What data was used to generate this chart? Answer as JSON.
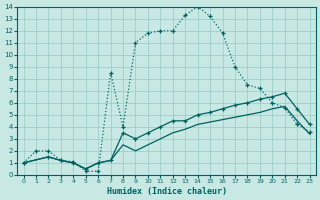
{
  "xlabel": "Humidex (Indice chaleur)",
  "bg_color": "#c8e8e4",
  "grid_color": "#98c8c4",
  "line_color": "#006060",
  "xlim": [
    -0.5,
    23.5
  ],
  "ylim": [
    0,
    14
  ],
  "xticks": [
    0,
    1,
    2,
    3,
    4,
    5,
    6,
    7,
    8,
    9,
    10,
    11,
    12,
    13,
    14,
    15,
    16,
    17,
    18,
    19,
    20,
    21,
    22,
    23
  ],
  "yticks": [
    0,
    1,
    2,
    3,
    4,
    5,
    6,
    7,
    8,
    9,
    10,
    11,
    12,
    13,
    14
  ],
  "line_dotted_x": [
    0,
    1,
    2,
    3,
    4,
    5,
    6,
    7,
    8,
    9,
    10,
    11,
    12,
    13,
    14,
    15,
    16,
    17,
    18,
    19,
    20,
    21,
    22,
    23
  ],
  "line_dotted_y": [
    1,
    2,
    2,
    1.2,
    1.1,
    0.3,
    0.3,
    8.5,
    4,
    11,
    11.8,
    12,
    12,
    13.3,
    14,
    13.2,
    11.8,
    9,
    7.5,
    7.2,
    6.0,
    5.6,
    4.2,
    3.6
  ],
  "line_top_x": [
    0,
    2,
    3,
    4,
    5,
    6,
    7,
    8,
    9,
    10,
    11,
    12,
    13,
    14,
    15,
    16,
    17,
    18,
    19,
    20,
    21,
    22,
    23
  ],
  "line_top_y": [
    1,
    1.5,
    1.2,
    1.0,
    0.5,
    1.0,
    1.2,
    3.5,
    3.0,
    3.5,
    4.0,
    4.5,
    4.5,
    5.0,
    5.2,
    5.5,
    5.8,
    6.0,
    6.3,
    6.5,
    6.8,
    5.5,
    4.2
  ],
  "line_bot_x": [
    0,
    2,
    3,
    4,
    5,
    6,
    7,
    8,
    9,
    10,
    11,
    12,
    13,
    14,
    15,
    16,
    17,
    18,
    19,
    20,
    21,
    22,
    23
  ],
  "line_bot_y": [
    1,
    1.5,
    1.2,
    1.0,
    0.5,
    1.0,
    1.2,
    2.5,
    2.0,
    2.5,
    3.0,
    3.5,
    3.8,
    4.2,
    4.4,
    4.6,
    4.8,
    5.0,
    5.2,
    5.5,
    5.7,
    4.5,
    3.4
  ]
}
